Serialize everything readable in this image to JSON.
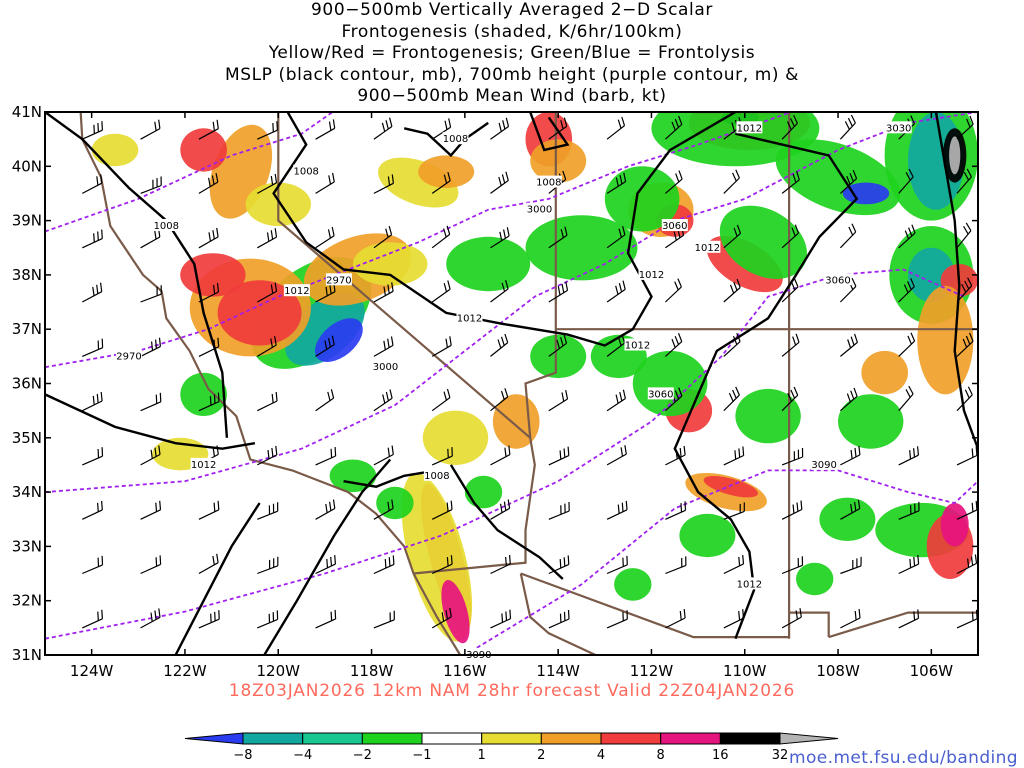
{
  "title_lines": [
    "900−500mb Vertically Averaged 2−D Scalar",
    "Frontogenesis (shaded, K/6hr/100km)",
    "Yellow/Red = Frontogenesis;  Green/Blue = Frontolysis",
    "MSLP (black contour, mb), 700mb height (purple contour, m) &",
    "900−500mb Mean Wind (barb, kt)"
  ],
  "valid_line": "18Z03JAN2026 12km NAM 28hr forecast Valid 22Z04JAN2026",
  "credit": "moe.met.fsu.edu/banding",
  "map": {
    "lat_labels": [
      "41N",
      "40N",
      "39N",
      "38N",
      "37N",
      "36N",
      "35N",
      "34N",
      "33N",
      "32N",
      "31N"
    ],
    "lat_values": [
      41,
      40,
      39,
      38,
      37,
      36,
      35,
      34,
      33,
      32,
      31
    ],
    "lon_labels": [
      "124W",
      "122W",
      "120W",
      "118W",
      "116W",
      "114W",
      "112W",
      "110W",
      "108W",
      "106W"
    ],
    "lon_values": [
      -124,
      -122,
      -120,
      -118,
      -116,
      -114,
      -112,
      -110,
      -108,
      -106
    ],
    "extent": {
      "lon_min": -125,
      "lon_max": -105,
      "lat_min": 31,
      "lat_max": 41
    },
    "mslp_labels": [
      {
        "text": "1008",
        "lon": -119.4,
        "lat": 39.9
      },
      {
        "text": "1008",
        "lon": -122.4,
        "lat": 38.9
      },
      {
        "text": "1008",
        "lon": -116.2,
        "lat": 40.5
      },
      {
        "text": "1008",
        "lon": -114.2,
        "lat": 39.7
      },
      {
        "text": "1012",
        "lon": -109.9,
        "lat": 40.7
      },
      {
        "text": "1012",
        "lon": -110.8,
        "lat": 38.5
      },
      {
        "text": "1012",
        "lon": -112.0,
        "lat": 38.0
      },
      {
        "text": "1012",
        "lon": -119.6,
        "lat": 37.7
      },
      {
        "text": "1012",
        "lon": -115.9,
        "lat": 37.2
      },
      {
        "text": "1012",
        "lon": -112.3,
        "lat": 36.7
      },
      {
        "text": "1012",
        "lon": -121.6,
        "lat": 34.5
      },
      {
        "text": "1008",
        "lon": -116.6,
        "lat": 34.3
      },
      {
        "text": "1012",
        "lon": -109.9,
        "lat": 32.3
      }
    ],
    "height_labels": [
      {
        "text": "3030",
        "lon": -106.7,
        "lat": 40.7
      },
      {
        "text": "3000",
        "lon": -114.4,
        "lat": 39.2
      },
      {
        "text": "3060",
        "lon": -111.5,
        "lat": 38.9
      },
      {
        "text": "2970",
        "lon": -118.7,
        "lat": 37.9
      },
      {
        "text": "3060",
        "lon": -108.0,
        "lat": 37.9
      },
      {
        "text": "3000",
        "lon": -117.7,
        "lat": 36.3
      },
      {
        "text": "2970",
        "lon": -123.2,
        "lat": 36.5
      },
      {
        "text": "3060",
        "lon": -111.8,
        "lat": 35.8
      },
      {
        "text": "3090",
        "lon": -108.3,
        "lat": 34.5
      },
      {
        "text": "3090",
        "lon": -115.7,
        "lat": 31.0
      }
    ]
  },
  "colorbar": {
    "labels": [
      "−8",
      "−4",
      "−2",
      "−1",
      "1",
      "2",
      "4",
      "8",
      "16",
      "32"
    ],
    "colors": [
      "#2a3cf0",
      "#12a8a0",
      "#18c890",
      "#1ed21e",
      "#ffffff",
      "#e6dc32",
      "#f0a028",
      "#f03c3c",
      "#e6147e",
      "#000000",
      "#b4b4b4"
    ]
  },
  "palette": {
    "blue": "#2a3cf0",
    "teal": "#12a8a0",
    "seagreen": "#18c890",
    "green": "#1ed21e",
    "yellow": "#e6dc32",
    "orange": "#f0a028",
    "red": "#f03c3c",
    "magenta": "#e6147e",
    "black": "#000000",
    "gray": "#b4b4b4",
    "purple": "#a020f0",
    "border": "#7a5a48"
  }
}
